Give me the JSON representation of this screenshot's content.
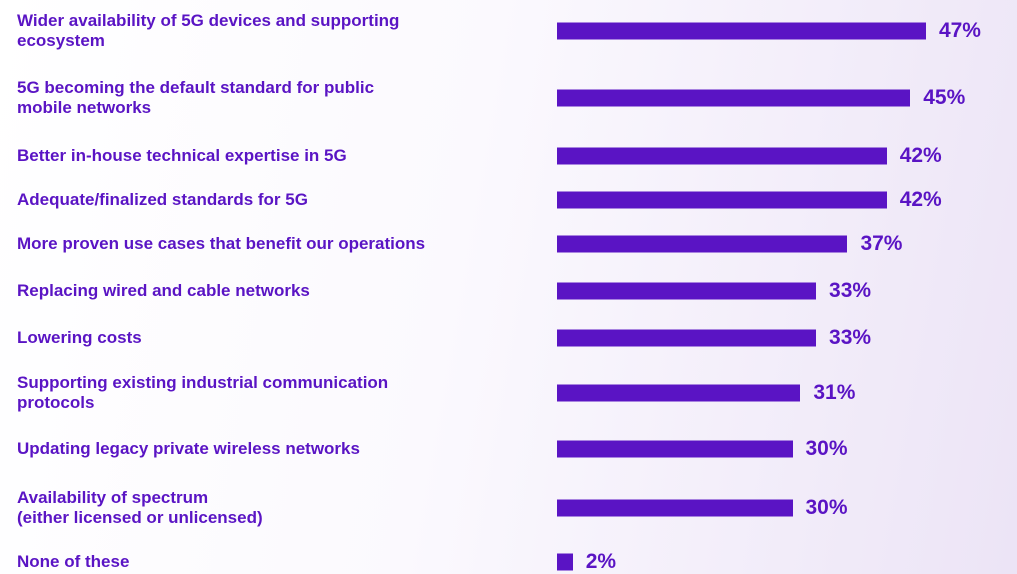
{
  "chart_data": {
    "type": "bar",
    "orientation": "horizontal",
    "categories": [
      "Wider availability of 5G devices and supporting\necosystem",
      "5G becoming the default standard for public\nmobile networks",
      "Better in-house technical expertise in 5G",
      "Adequate/finalized standards for 5G",
      "More proven use cases that benefit our operations",
      "Replacing wired and cable networks",
      "Lowering costs",
      "Supporting existing industrial communication\nprotocols",
      "Updating legacy private wireless networks",
      "Availability of spectrum\n(either licensed or unlicensed)",
      "None of these"
    ],
    "values": [
      47,
      45,
      42,
      42,
      37,
      33,
      33,
      31,
      30,
      30,
      2
    ],
    "value_labels": [
      "47%",
      "45%",
      "42%",
      "42%",
      "37%",
      "33%",
      "33%",
      "31%",
      "30%",
      "30%",
      "2%"
    ],
    "color": "#5a14c4"
  }
}
